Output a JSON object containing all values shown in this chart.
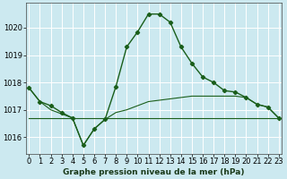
{
  "title": "Graphe pression niveau de la mer (hPa)",
  "background_color": "#cce9f0",
  "grid_color": "#ffffff",
  "line_color": "#1a5e1a",
  "x_ticks": [
    0,
    1,
    2,
    3,
    4,
    5,
    6,
    7,
    8,
    9,
    10,
    11,
    12,
    13,
    14,
    15,
    16,
    17,
    18,
    19,
    20,
    21,
    22,
    23
  ],
  "y_ticks": [
    1016,
    1017,
    1018,
    1019,
    1020
  ],
  "ylim": [
    1015.4,
    1020.9
  ],
  "xlim": [
    -0.3,
    23.3
  ],
  "series1_x": [
    0,
    1,
    2,
    3,
    4,
    5,
    6,
    7,
    8,
    9,
    10,
    11,
    12,
    13,
    14,
    15,
    16,
    17,
    18,
    19,
    20,
    21,
    22,
    23
  ],
  "series1_y": [
    1017.8,
    1017.3,
    1017.15,
    1016.9,
    1016.7,
    1015.7,
    1016.3,
    1016.65,
    1017.85,
    1019.3,
    1019.85,
    1020.5,
    1020.5,
    1020.2,
    1019.3,
    1018.7,
    1018.2,
    1018.0,
    1017.7,
    1017.65,
    1017.45,
    1017.2,
    1017.1,
    1016.7
  ],
  "series2_x": [
    0,
    1,
    2,
    3,
    4,
    5,
    6,
    7,
    8,
    9,
    10,
    11,
    12,
    13,
    14,
    15,
    16,
    17,
    18,
    19,
    20,
    21,
    22,
    23
  ],
  "series2_y": [
    1017.8,
    1017.3,
    1017.0,
    1016.85,
    1016.7,
    1015.7,
    1016.3,
    1016.65,
    1016.9,
    1017.0,
    1017.15,
    1017.3,
    1017.35,
    1017.4,
    1017.45,
    1017.5,
    1017.5,
    1017.5,
    1017.5,
    1017.5,
    1017.45,
    1017.2,
    1017.1,
    1016.7
  ],
  "series3_x": [
    0,
    1,
    2,
    3,
    4,
    5,
    6,
    7,
    8,
    9,
    10,
    11,
    12,
    13,
    14,
    15,
    16,
    17,
    18,
    19,
    20,
    21,
    22,
    23
  ],
  "series3_y": [
    1016.7,
    1016.7,
    1016.7,
    1016.7,
    1016.7,
    1016.7,
    1016.7,
    1016.7,
    1016.7,
    1016.7,
    1016.7,
    1016.7,
    1016.7,
    1016.7,
    1016.7,
    1016.7,
    1016.7,
    1016.7,
    1016.7,
    1016.7,
    1016.7,
    1016.7,
    1016.7,
    1016.7
  ],
  "tick_fontsize": 6,
  "label_fontsize": 6.5
}
